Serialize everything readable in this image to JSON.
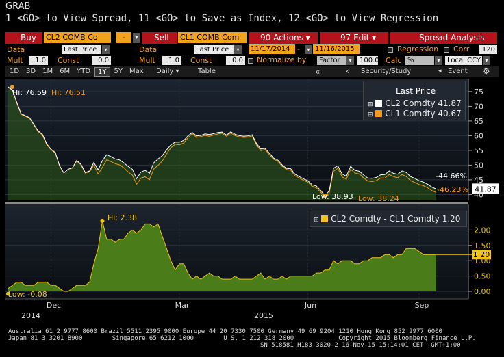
{
  "header": {
    "title": "GRAB",
    "command_line": "1 <GO> to View Spread, 11 <GO> to Save as Index, 12 <GO> to View Regression"
  },
  "toolbar": {
    "buy_label": "Buy",
    "buy_ticker": "CL2 COMB Co",
    "minus_label": "-",
    "sell_label": "Sell",
    "sell_ticker": "CL1 COMB Com",
    "actions_label": "90 Actions",
    "edit_label": "97 Edit",
    "spread_analysis_label": "Spread Analysis"
  },
  "params_row1": {
    "data_label": "Data",
    "data_value": "Last Price",
    "data2_label": "Data",
    "data2_value": "Last Price",
    "start_date": "11/17/2014",
    "dash": "-",
    "end_date": "11/16/2015",
    "regression_label": "Regression",
    "corr_label": "Corr",
    "corr_value": "120"
  },
  "params_row2": {
    "mult_label": "Mult",
    "mult_value": "1.0",
    "const_label": "Const",
    "const_value": "0.0",
    "mult2_label": "Mult",
    "mult2_value": "1.0",
    "const2_label": "Const",
    "const2_value": "0.0",
    "normalize_label": "Normalize by",
    "factor_value": "Factor",
    "factor_num": "100.0",
    "calc_label": "Calc",
    "calc_value": "%",
    "ccy_value": "Local CCY"
  },
  "tabs": {
    "periods": [
      "1D",
      "3D",
      "1M",
      "6M",
      "YTD",
      "1Y",
      "5Y",
      "Max"
    ],
    "active": "1Y",
    "daily": "Daily",
    "table": "Table",
    "security_study": "Security/Study",
    "event": "Event"
  },
  "footer": {
    "line1": "Australia 61 2 9777 8600 Brazil 5511 2395 9000 Europe 44 20 7330 7500 Germany 49 69 9204 1210 Hong Kong 852 2977 6000",
    "line2": "Japan 81 3 3201 8900        Singapore 65 6212 1000        U.S. 1 212 318 2000            Copyright 2015 Bloomberg Finance L.P.",
    "line3": "SN 518581 H183-3020-2 16-Nov-15 15:14:01 CET  GMT+1:00"
  },
  "colors": {
    "cl2": "#ffffff",
    "cl1": "#f39a1e",
    "spread_fill": "#4a7c1a",
    "spread_line": "#f0c419",
    "price_fill": "#2f5d1a",
    "bloomberg_red": "#b5121b"
  },
  "chart_data": [
    {
      "type": "line",
      "title": "",
      "legend_title": "Last Price",
      "x_axis_labels": [
        "Dec",
        "Mar",
        "Jun",
        "Sep"
      ],
      "x_year_labels": [
        "2014",
        "2015"
      ],
      "ylim": [
        38,
        78
      ],
      "y_ticks": [
        40,
        45,
        50,
        55,
        60,
        65,
        70,
        75
      ],
      "series": [
        {
          "name": "CL2 Comdty",
          "last": "41.87",
          "values": [
            76.6,
            75.5,
            71.4,
            67.5,
            66.8,
            66.1,
            63.8,
            61.6,
            60.5,
            57.2,
            55.4,
            54.3,
            49.8,
            47.3,
            48.6,
            49.1,
            51.6,
            50.3,
            47.5,
            48.0,
            50.9,
            48.4,
            51.5,
            53.5,
            52.9,
            52.1,
            51.8,
            50.8,
            49.6,
            48.6,
            45.4,
            47.6,
            48.2,
            47.2,
            50.8,
            52.1,
            53.2,
            55.2,
            56.9,
            57.8,
            57.8,
            58.4,
            59.9,
            61.1,
            59.9,
            60.1,
            60.6,
            60.4,
            60.7,
            61.1,
            61.2,
            60.2,
            61.3,
            60.5,
            60.0,
            59.8,
            59.9,
            60.3,
            57.4,
            55.5,
            55.7,
            54.1,
            52.4,
            51.7,
            50.1,
            48.9,
            48.8,
            46.9,
            46.1,
            45.3,
            44.7,
            43.3,
            42.9,
            41.4,
            39.6,
            41.2,
            48.9,
            49.8,
            47.0,
            46.2,
            49.6,
            48.2,
            47.9,
            46.7,
            45.6,
            45.5,
            45.8,
            46.7,
            46.8,
            48.0,
            47.2,
            46.9,
            48.0,
            47.5,
            46.1,
            45.5,
            44.7,
            44.2,
            43.5,
            42.5,
            41.9
          ],
          "hi": "76.59",
          "low": "38.93",
          "change_pct": "-44.66%"
        },
        {
          "name": "CL1 Comdty",
          "last": "40.67",
          "values": [
            76.5,
            75.3,
            71.1,
            67.2,
            66.6,
            65.9,
            63.6,
            61.3,
            60.2,
            56.9,
            55.2,
            54.1,
            49.7,
            47.3,
            48.6,
            49.0,
            51.4,
            50.1,
            47.3,
            47.7,
            50.0,
            47.0,
            49.2,
            51.8,
            51.2,
            50.5,
            50.1,
            49.1,
            47.7,
            46.6,
            43.5,
            45.6,
            46.0,
            45.0,
            48.7,
            49.9,
            51.4,
            53.8,
            55.9,
            57.1,
            56.9,
            57.5,
            59.3,
            60.7,
            59.4,
            59.7,
            60.1,
            59.8,
            60.2,
            60.6,
            60.8,
            59.8,
            60.9,
            60.0,
            59.6,
            59.4,
            59.5,
            59.9,
            56.9,
            54.9,
            55.3,
            53.6,
            52.0,
            51.3,
            49.6,
            48.5,
            48.3,
            46.4,
            45.6,
            44.8,
            44.2,
            42.8,
            42.3,
            40.8,
            38.9,
            40.5,
            47.9,
            48.9,
            46.0,
            45.2,
            48.6,
            47.3,
            47.0,
            45.7,
            44.6,
            44.4,
            44.7,
            45.6,
            45.6,
            46.8,
            46.1,
            45.7,
            46.8,
            46.1,
            44.7,
            44.1,
            43.4,
            43.0,
            42.3,
            41.3,
            40.7
          ],
          "hi": "76.51",
          "low": "38.24",
          "change_pct": "-46.23%"
        }
      ]
    },
    {
      "type": "area",
      "title": "",
      "ylim": [
        -0.2,
        2.7
      ],
      "y_ticks": [
        0.0,
        0.5,
        1.0,
        1.5,
        2.0
      ],
      "y_tick_labels": [
        "0.00",
        "0.50",
        "1.00",
        "1.50",
        "2.00"
      ],
      "series": [
        {
          "name": "CL2 Comdty - CL1 Comdty",
          "last": "1.20",
          "hi": "2.38",
          "low": "-0.08",
          "values": [
            0.1,
            0.2,
            0.3,
            0.3,
            0.2,
            0.2,
            0.2,
            0.3,
            0.3,
            0.3,
            0.2,
            0.2,
            0.1,
            0.0,
            0.0,
            0.1,
            0.2,
            0.2,
            0.2,
            0.3,
            0.9,
            1.4,
            2.3,
            1.7,
            1.7,
            1.6,
            1.7,
            1.7,
            1.9,
            2.0,
            1.9,
            2.0,
            2.2,
            2.2,
            2.1,
            2.2,
            1.8,
            1.4,
            1.0,
            0.7,
            0.9,
            0.9,
            0.6,
            0.4,
            0.5,
            0.4,
            0.5,
            0.6,
            0.5,
            0.5,
            0.4,
            0.4,
            0.4,
            0.5,
            0.4,
            0.4,
            0.4,
            0.4,
            0.5,
            0.6,
            0.4,
            0.5,
            0.4,
            0.4,
            0.5,
            0.4,
            0.5,
            0.5,
            0.5,
            0.5,
            0.5,
            0.5,
            0.6,
            0.6,
            0.7,
            0.7,
            1.0,
            0.9,
            1.0,
            1.0,
            1.0,
            0.9,
            0.9,
            1.0,
            1.0,
            1.1,
            1.1,
            1.1,
            1.2,
            1.2,
            1.1,
            1.2,
            1.2,
            1.4,
            1.4,
            1.4,
            1.3,
            1.2,
            1.2,
            1.2,
            1.2
          ]
        }
      ]
    }
  ]
}
